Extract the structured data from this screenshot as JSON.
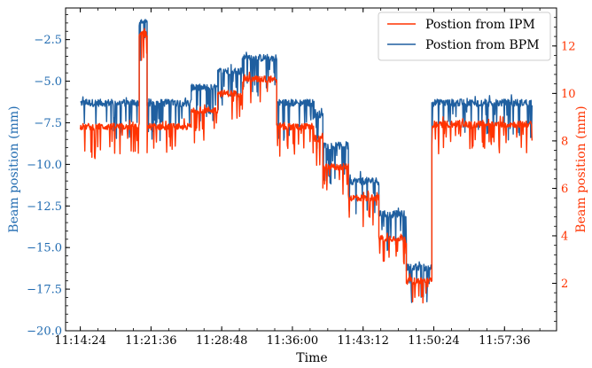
{
  "chart_data": {
    "type": "line",
    "title": "",
    "xlabel": "Time",
    "ylabel_left": "Beam position (mm)",
    "ylabel_right": "Beam position (mm)",
    "colors": {
      "bpm": "#1f5fa0",
      "ipm": "#ff3300",
      "left_axis": "#1f6ab0",
      "right_axis": "#ff3300"
    },
    "x_unit": "minutes after 11:14:24",
    "x_range": [
      -1.5,
      48.5
    ],
    "x_ticks": [
      {
        "t": 0,
        "label": "11:14:24"
      },
      {
        "t": 7.2,
        "label": "11:21:36"
      },
      {
        "t": 14.4,
        "label": "11:28:48"
      },
      {
        "t": 21.6,
        "label": "11:36:00"
      },
      {
        "t": 28.8,
        "label": "11:43:12"
      },
      {
        "t": 36.0,
        "label": "11:50:24"
      },
      {
        "t": 43.2,
        "label": "11:57:36"
      }
    ],
    "y_left_range": [
      -20.0,
      -0.6
    ],
    "y_left_ticks": [
      {
        "v": -2.5,
        "label": "−2.5"
      },
      {
        "v": -5.0,
        "label": "−5.0"
      },
      {
        "v": -7.5,
        "label": "−7.5"
      },
      {
        "v": -10.0,
        "label": "−10.0"
      },
      {
        "v": -12.5,
        "label": "−12.5"
      },
      {
        "v": -15.0,
        "label": "−15.0"
      },
      {
        "v": -17.5,
        "label": "−17.5"
      },
      {
        "v": -20.0,
        "label": "−20.0"
      }
    ],
    "y_right_range": [
      0.0,
      13.6
    ],
    "y_right_ticks": [
      {
        "v": 2,
        "label": "2"
      },
      {
        "v": 4,
        "label": "4"
      },
      {
        "v": 6,
        "label": "6"
      },
      {
        "v": 8,
        "label": "8"
      },
      {
        "v": 10,
        "label": "10"
      },
      {
        "v": 12,
        "label": "12"
      }
    ],
    "legend": {
      "placement": "top-right",
      "entries": [
        {
          "label": "Postion from IPM",
          "color": "#ff3300"
        },
        {
          "label": "Postion from BPM",
          "color": "#1f5fa0"
        }
      ]
    },
    "series": [
      {
        "name": "Postion from BPM",
        "axis": "left",
        "color": "#1f5fa0",
        "segments": [
          {
            "t0": 0.0,
            "t1": 6.0,
            "level": -6.3
          },
          {
            "t0": 6.0,
            "t1": 6.8,
            "level": -1.5
          },
          {
            "t0": 6.8,
            "t1": 11.3,
            "level": -6.3
          },
          {
            "t0": 11.3,
            "t1": 14.0,
            "level": -5.4
          },
          {
            "t0": 14.0,
            "t1": 16.5,
            "level": -4.4
          },
          {
            "t0": 16.5,
            "t1": 20.0,
            "level": -3.6
          },
          {
            "t0": 20.0,
            "t1": 23.8,
            "level": -6.3
          },
          {
            "t0": 23.8,
            "t1": 24.7,
            "level": -7.0
          },
          {
            "t0": 24.7,
            "t1": 27.3,
            "level": -8.9
          },
          {
            "t0": 27.3,
            "t1": 30.4,
            "level": -11.0
          },
          {
            "t0": 30.4,
            "t1": 33.2,
            "level": -13.0
          },
          {
            "t0": 33.2,
            "t1": 35.8,
            "level": -16.2
          },
          {
            "t0": 35.8,
            "t1": 46.0,
            "level": -6.3
          }
        ]
      },
      {
        "name": "Postion from IPM",
        "axis": "right",
        "color": "#ff3300",
        "segments": [
          {
            "t0": 0.0,
            "t1": 6.0,
            "level": 8.6
          },
          {
            "t0": 6.0,
            "t1": 6.8,
            "level": 12.5
          },
          {
            "t0": 6.8,
            "t1": 11.3,
            "level": 8.6
          },
          {
            "t0": 11.3,
            "t1": 14.0,
            "level": 9.3
          },
          {
            "t0": 14.0,
            "t1": 16.5,
            "level": 10.0
          },
          {
            "t0": 16.5,
            "t1": 20.0,
            "level": 10.6
          },
          {
            "t0": 20.0,
            "t1": 23.8,
            "level": 8.6
          },
          {
            "t0": 23.8,
            "t1": 24.7,
            "level": 8.1
          },
          {
            "t0": 24.7,
            "t1": 27.3,
            "level": 6.9
          },
          {
            "t0": 27.3,
            "t1": 30.4,
            "level": 5.6
          },
          {
            "t0": 30.4,
            "t1": 33.2,
            "level": 3.9
          },
          {
            "t0": 33.2,
            "t1": 35.8,
            "level": 2.1
          },
          {
            "t0": 35.8,
            "t1": 46.0,
            "level": 8.7
          }
        ]
      }
    ]
  }
}
